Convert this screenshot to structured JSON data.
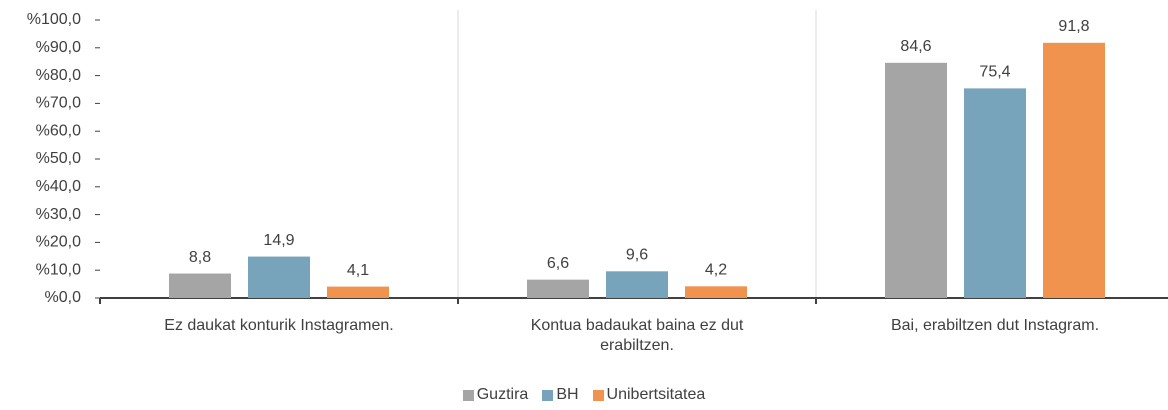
{
  "chart_data": {
    "type": "bar",
    "categories": [
      "Ez daukat konturik Instagramen.",
      "Kontua badaukat baina ez dut erabiltzen.",
      "Bai, erabiltzen dut Instagram."
    ],
    "series": [
      {
        "name": "Guztira",
        "color": "#a5a5a5",
        "values": [
          8.8,
          6.6,
          84.6
        ],
        "value_labels": [
          "8,8",
          "6,6",
          "84,6"
        ]
      },
      {
        "name": "BH",
        "color": "#77a3bb",
        "values": [
          14.9,
          9.6,
          75.4
        ],
        "value_labels": [
          "14,9",
          "9,6",
          "75,4"
        ]
      },
      {
        "name": "Unibertsitatea",
        "color": "#f0934f",
        "values": [
          4.1,
          4.2,
          91.8
        ],
        "value_labels": [
          "4,1",
          "4,2",
          "91,8"
        ]
      }
    ],
    "ylim": [
      0,
      100
    ],
    "yticks": [
      {
        "value": 0,
        "label": "%0,0"
      },
      {
        "value": 10,
        "label": "%10,0"
      },
      {
        "value": 20,
        "label": "%20,0"
      },
      {
        "value": 30,
        "label": "%30,0"
      },
      {
        "value": 40,
        "label": "%40,0"
      },
      {
        "value": 50,
        "label": "%50,0"
      },
      {
        "value": 60,
        "label": "%60,0"
      },
      {
        "value": 70,
        "label": "%70,0"
      },
      {
        "value": 80,
        "label": "%80,0"
      },
      {
        "value": 90,
        "label": "%90,0"
      },
      {
        "value": 100,
        "label": "%100,0"
      }
    ],
    "legend": "bottom"
  }
}
